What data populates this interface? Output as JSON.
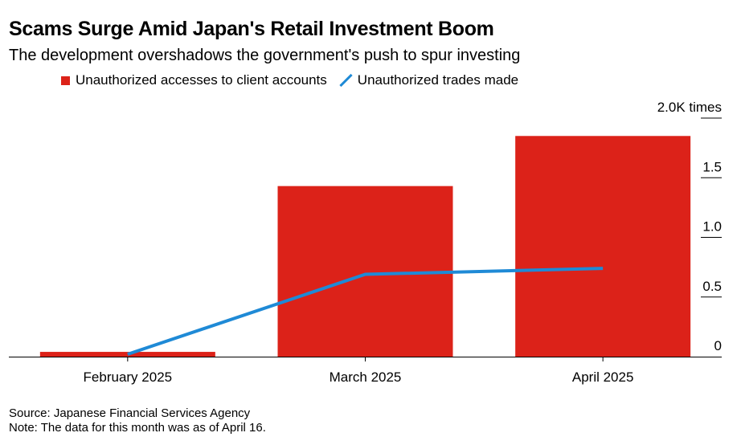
{
  "chart_data": {
    "type": "bar",
    "title": "Scams Surge Amid Japan's Retail Investment Boom",
    "subtitle": "The development overshadows the government's push to spur investing",
    "categories": [
      "February 2025",
      "March 2025",
      "April 2025"
    ],
    "series": [
      {
        "name": "Unauthorized accesses to client accounts",
        "type": "bar",
        "color": "#dc2219",
        "values": [
          0.04,
          1.43,
          1.85
        ]
      },
      {
        "name": "Unauthorized trades made",
        "type": "line",
        "color": "#1f8ad6",
        "values": [
          0.02,
          0.69,
          0.74
        ]
      }
    ],
    "ylim": [
      0,
      2.0
    ],
    "yticks": [
      {
        "value": 0,
        "label": "0"
      },
      {
        "value": 0.5,
        "label": "0.5"
      },
      {
        "value": 1.0,
        "label": "1.0"
      },
      {
        "value": 1.5,
        "label": "1.5"
      },
      {
        "value": 2.0,
        "label": "2.0K times"
      }
    ],
    "xlabel": "",
    "ylabel": "times (thousands)",
    "legend_position": "top-left",
    "grid": false
  },
  "footer": {
    "source": "Source: Japanese Financial Services Agency",
    "note": "Note: The data for this month was as of April 16."
  }
}
